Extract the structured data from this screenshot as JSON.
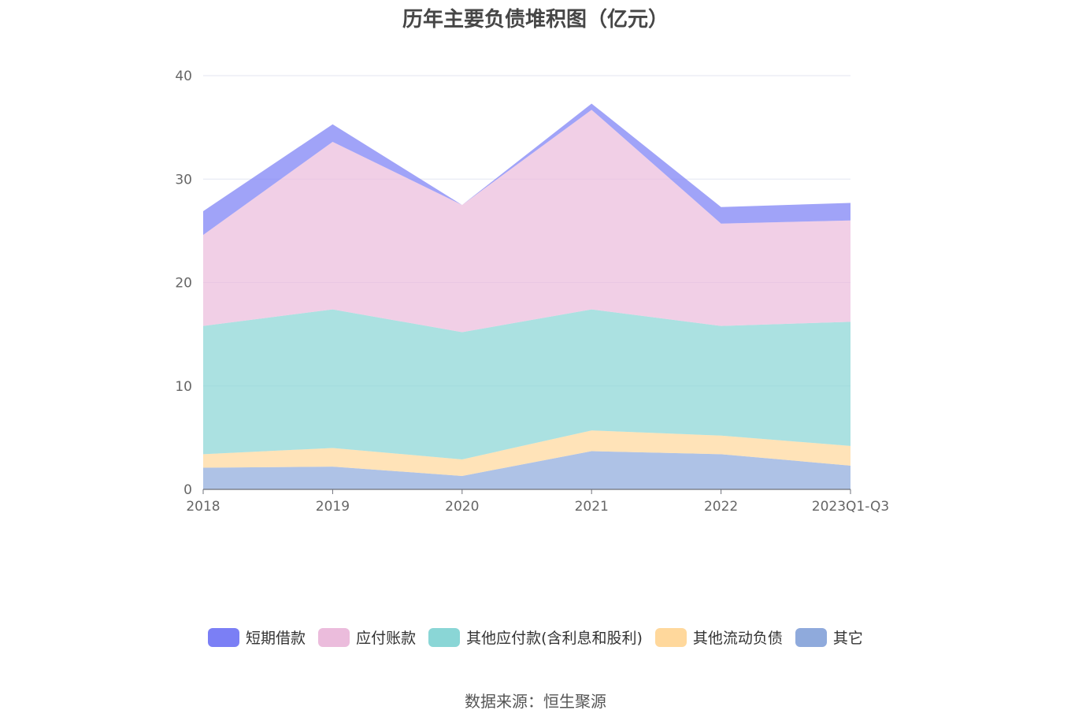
{
  "chart_data": {
    "type": "area",
    "stacked": true,
    "title": "历年主要负债堆积图（亿元）",
    "categories": [
      "2018",
      "2019",
      "2020",
      "2021",
      "2022",
      "2023Q1-Q3"
    ],
    "ylim": [
      0,
      40
    ],
    "yticks": [
      0,
      10,
      20,
      30,
      40
    ],
    "grid": true,
    "legend_position": "bottom",
    "series": [
      {
        "name": "其它",
        "color": "#8faadc",
        "values": [
          2.1,
          2.2,
          1.3,
          3.7,
          3.4,
          2.3
        ]
      },
      {
        "name": "其他流动负债",
        "color": "#ffd89c",
        "values": [
          1.3,
          1.8,
          1.6,
          2.0,
          1.8,
          1.9
        ]
      },
      {
        "name": "其他应付款(含利息和股利)",
        "color": "#8ad6d6",
        "values": [
          12.4,
          13.4,
          12.3,
          11.7,
          10.6,
          12.0
        ]
      },
      {
        "name": "应付账款",
        "color": "#ebbcdc",
        "values": [
          8.8,
          16.2,
          12.3,
          19.3,
          9.9,
          9.8
        ]
      },
      {
        "name": "短期借款",
        "color": "#7b7ff5",
        "values": [
          2.3,
          1.7,
          0.0,
          0.6,
          1.6,
          1.7
        ]
      }
    ],
    "legend_order": [
      "短期借款",
      "应付账款",
      "其他应付款(含利息和股利)",
      "其他流动负债",
      "其它"
    ],
    "source": "数据来源：恒生聚源"
  }
}
